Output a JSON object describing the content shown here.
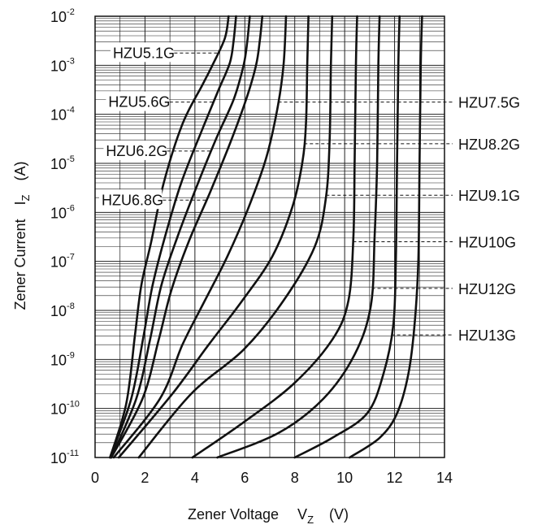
{
  "chart_data": {
    "type": "line",
    "title": "",
    "xlabel": "Zener Voltage",
    "xlabel_symbol": "V",
    "xlabel_sub": "Z",
    "xlabel_unit": "(V)",
    "ylabel": "Zener Current",
    "ylabel_symbol": "I",
    "ylabel_sub": "Z",
    "ylabel_unit": "(A)",
    "x_scale": "linear",
    "y_scale": "log",
    "xlim": [
      0,
      14
    ],
    "ylim_exponent": [
      -11,
      -2
    ],
    "x_ticks": [
      "0",
      "2",
      "4",
      "6",
      "8",
      "10",
      "12",
      "14"
    ],
    "y_ticks": [
      {
        "base": "10",
        "exp": "-11"
      },
      {
        "base": "10",
        "exp": "-10"
      },
      {
        "base": "10",
        "exp": "-9"
      },
      {
        "base": "10",
        "exp": "-8"
      },
      {
        "base": "10",
        "exp": "-7"
      },
      {
        "base": "10",
        "exp": "-6"
      },
      {
        "base": "10",
        "exp": "-5"
      },
      {
        "base": "10",
        "exp": "-4"
      },
      {
        "base": "10",
        "exp": "-3"
      },
      {
        "base": "10",
        "exp": "-2"
      }
    ],
    "grid": true,
    "series": [
      {
        "name": "HZU5.1G",
        "label_side": "left",
        "label_at_exp": -2.75,
        "points": [
          [
            0.6,
            -11
          ],
          [
            1.25,
            -9.9
          ],
          [
            1.6,
            -8.5
          ],
          [
            1.85,
            -7.5
          ],
          [
            2.25,
            -6.6
          ],
          [
            2.75,
            -5.4
          ],
          [
            3.5,
            -4.2
          ],
          [
            4.3,
            -3.4
          ],
          [
            4.7,
            -3.0
          ],
          [
            5.2,
            -2.45
          ],
          [
            5.35,
            -2.0
          ]
        ]
      },
      {
        "name": "HZU5.6G",
        "label_side": "left",
        "label_at_exp": -3.75,
        "points": [
          [
            0.6,
            -11
          ],
          [
            1.45,
            -9.8
          ],
          [
            1.95,
            -8.5
          ],
          [
            2.3,
            -7.5
          ],
          [
            2.8,
            -6.5
          ],
          [
            3.45,
            -5.4
          ],
          [
            4.3,
            -4.3
          ],
          [
            4.95,
            -3.5
          ],
          [
            5.4,
            -2.95
          ],
          [
            5.55,
            -2.5
          ],
          [
            5.65,
            -2.0
          ]
        ]
      },
      {
        "name": "HZU6.2G",
        "label_side": "left",
        "label_at_exp": -4.75,
        "points": [
          [
            0.65,
            -11
          ],
          [
            1.65,
            -9.8
          ],
          [
            2.2,
            -8.6
          ],
          [
            2.65,
            -7.5
          ],
          [
            3.3,
            -6.5
          ],
          [
            4.05,
            -5.5
          ],
          [
            4.85,
            -4.5
          ],
          [
            5.55,
            -3.7
          ],
          [
            5.95,
            -3.0
          ],
          [
            6.1,
            -2.5
          ],
          [
            6.2,
            -2.0
          ]
        ]
      },
      {
        "name": "HZU6.8G",
        "label_side": "left",
        "label_at_exp": -5.75,
        "points": [
          [
            0.65,
            -11
          ],
          [
            1.9,
            -9.8
          ],
          [
            2.55,
            -8.6
          ],
          [
            3.05,
            -7.6
          ],
          [
            3.75,
            -6.6
          ],
          [
            4.6,
            -5.6
          ],
          [
            5.4,
            -4.6
          ],
          [
            6.05,
            -3.7
          ],
          [
            6.45,
            -3.0
          ],
          [
            6.6,
            -2.5
          ],
          [
            6.7,
            -2.0
          ]
        ]
      },
      {
        "name": "HZU7.5G",
        "label_side": "right",
        "label_at_exp": -3.75,
        "points": [
          [
            0.75,
            -11
          ],
          [
            2.6,
            -9.8
          ],
          [
            3.5,
            -8.7
          ],
          [
            4.4,
            -7.8
          ],
          [
            5.3,
            -6.9
          ],
          [
            6.15,
            -5.9
          ],
          [
            6.85,
            -4.9
          ],
          [
            7.3,
            -3.9
          ],
          [
            7.55,
            -3.0
          ],
          [
            7.65,
            -2.0
          ]
        ]
      },
      {
        "name": "HZU8.2G",
        "label_side": "right",
        "label_at_exp": -4.6,
        "points": [
          [
            0.95,
            -11
          ],
          [
            3.1,
            -9.7
          ],
          [
            4.55,
            -8.7
          ],
          [
            5.9,
            -7.8
          ],
          [
            7.1,
            -6.9
          ],
          [
            7.9,
            -5.9
          ],
          [
            8.3,
            -5.0
          ],
          [
            8.45,
            -4.2
          ],
          [
            8.5,
            -3.0
          ],
          [
            8.55,
            -2.0
          ]
        ]
      },
      {
        "name": "HZU9.1G",
        "label_side": "right",
        "label_at_exp": -5.65,
        "points": [
          [
            1.75,
            -11
          ],
          [
            3.85,
            -9.7
          ],
          [
            5.95,
            -8.8
          ],
          [
            7.55,
            -7.8
          ],
          [
            8.8,
            -6.7
          ],
          [
            9.25,
            -5.7
          ],
          [
            9.4,
            -4.5
          ],
          [
            9.45,
            -3.0
          ],
          [
            9.5,
            -2.0
          ]
        ]
      },
      {
        "name": "HZU10G",
        "label_side": "right",
        "label_at_exp": -6.6,
        "points": [
          [
            3.9,
            -11
          ],
          [
            5.9,
            -10.3
          ],
          [
            7.95,
            -9.5
          ],
          [
            9.5,
            -8.6
          ],
          [
            10.15,
            -7.8
          ],
          [
            10.35,
            -6.5
          ],
          [
            10.4,
            -5.0
          ],
          [
            10.45,
            -3.0
          ],
          [
            10.5,
            -2.0
          ]
        ]
      },
      {
        "name": "HZU12G",
        "label_side": "right",
        "label_at_exp": -7.55,
        "points": [
          [
            4.9,
            -11
          ],
          [
            7.35,
            -10.5
          ],
          [
            9.15,
            -9.8
          ],
          [
            10.4,
            -8.9
          ],
          [
            11.05,
            -7.9
          ],
          [
            11.2,
            -6.5
          ],
          [
            11.3,
            -5.0
          ],
          [
            11.35,
            -3.0
          ],
          [
            11.4,
            -2.0
          ]
        ]
      },
      {
        "name": "HZU13G",
        "label_side": "right",
        "label_at_exp": -8.5,
        "points": [
          [
            8.0,
            -11
          ],
          [
            9.5,
            -10.6
          ],
          [
            10.9,
            -10.1
          ],
          [
            11.55,
            -9.3
          ],
          [
            11.95,
            -8.3
          ],
          [
            12.05,
            -7.0
          ],
          [
            12.1,
            -5.0
          ],
          [
            12.15,
            -3.0
          ],
          [
            12.2,
            -2.0
          ]
        ]
      },
      {
        "name": "",
        "label_side": "none",
        "points": [
          [
            10.2,
            -11
          ],
          [
            11.4,
            -10.6
          ],
          [
            12.1,
            -10.1
          ],
          [
            12.55,
            -9.3
          ],
          [
            12.8,
            -8.3
          ],
          [
            12.95,
            -7.0
          ],
          [
            13.0,
            -5.0
          ],
          [
            13.05,
            -3.0
          ],
          [
            13.1,
            -2.0
          ]
        ]
      }
    ]
  }
}
